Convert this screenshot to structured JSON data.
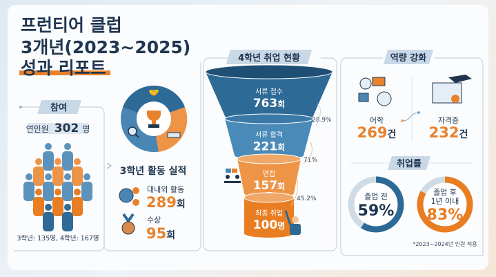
{
  "title": {
    "line1": "프런티어 클럽",
    "line2": "3개년(2023~2025)",
    "line3": "성과 리포트"
  },
  "participation": {
    "heading": "참여",
    "total_label": "연인원",
    "total_value": "302",
    "total_unit": "명",
    "breakdown": "3학년: 135명, 4학년: 167명"
  },
  "activities": {
    "heading": "3학년 활동 실적",
    "items": [
      {
        "label": "대내외 활동",
        "value": "289",
        "unit": "회",
        "icon": "globe-gears-icon"
      },
      {
        "label": "수상",
        "value": "95",
        "unit": "회",
        "icon": "medal-icon"
      }
    ]
  },
  "funnel": {
    "heading": "4학년 취업 현황",
    "stages": [
      {
        "label": "서류 접수",
        "value": "763",
        "unit": "회",
        "color": "#2e6a96"
      },
      {
        "label": "서류 합격",
        "value": "221",
        "unit": "회",
        "color": "#4a8ab8"
      },
      {
        "label": "면접",
        "value": "157",
        "unit": "회",
        "color": "#ee9447"
      },
      {
        "label": "최종 취업",
        "value": "100",
        "unit": "명",
        "color": "#e97d22"
      }
    ],
    "rates": [
      "28.9%",
      "71%",
      "45.2%"
    ]
  },
  "competency": {
    "heading": "역량 강화",
    "items": [
      {
        "label": "어학",
        "value": "269",
        "unit": "건",
        "icon": "language-icon"
      },
      {
        "label": "자격증",
        "value": "232",
        "unit": "건",
        "icon": "certificate-icon"
      }
    ]
  },
  "employment_rate": {
    "heading": "취업률",
    "items": [
      {
        "label": "졸업 전",
        "label2": "",
        "value": "59%",
        "fraction": 0.59,
        "color": "#2e6a96"
      },
      {
        "label": "졸업 후",
        "label2": "1년 이내",
        "value": "83%",
        "fraction": 0.83,
        "color": "#e97d22"
      }
    ],
    "note": "*2023~2024년 인원 적용"
  },
  "colors": {
    "navy": "#1f3550",
    "orange": "#e8812b",
    "blue": "#4a8ab8"
  }
}
